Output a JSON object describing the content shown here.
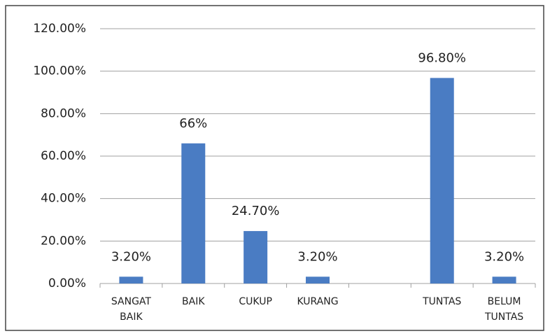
{
  "chart_data": {
    "type": "bar",
    "categories": [
      "SANGAT BAIK",
      "BAIK",
      "CUKUP",
      "KURANG",
      null,
      "TUNTAS",
      "BELUM TUNTAS"
    ],
    "values": [
      3.2,
      66,
      24.7,
      3.2,
      null,
      96.8,
      3.2
    ],
    "value_labels": [
      "3.20%",
      "66%",
      "24.70%",
      "3.20%",
      null,
      "96.80%",
      "3.20%"
    ],
    "color": "#4a7cc3",
    "ylim": [
      0,
      120
    ],
    "yticks": [
      {
        "value": 0,
        "label": "0.00%"
      },
      {
        "value": 20,
        "label": "20.00%"
      },
      {
        "value": 40,
        "label": "40.00%"
      },
      {
        "value": 60,
        "label": "60.00%"
      },
      {
        "value": 80,
        "label": "80.00%"
      },
      {
        "value": 100,
        "label": "100.00%"
      },
      {
        "value": 120,
        "label": "120.00%"
      }
    ],
    "grid": true
  }
}
